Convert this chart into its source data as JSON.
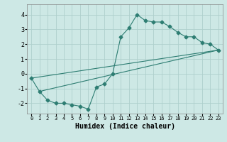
{
  "title": "",
  "xlabel": "Humidex (Indice chaleur)",
  "ylabel": "",
  "background_color": "#cde8e5",
  "grid_color": "#aed0cc",
  "line_color": "#2d7d72",
  "x_data": [
    0,
    1,
    2,
    3,
    4,
    5,
    6,
    7,
    8,
    9,
    10,
    11,
    12,
    13,
    14,
    15,
    16,
    17,
    18,
    19,
    20,
    21,
    22,
    23
  ],
  "y_data": [
    -0.3,
    -1.2,
    -1.8,
    -2.0,
    -2.0,
    -2.1,
    -2.2,
    -2.4,
    -0.9,
    -0.7,
    0.0,
    2.5,
    3.1,
    4.0,
    3.6,
    3.5,
    3.5,
    3.2,
    2.8,
    2.5,
    2.5,
    2.1,
    2.0,
    1.6
  ],
  "line1_x": [
    0,
    23
  ],
  "line1_y": [
    -0.3,
    1.6
  ],
  "line2_x": [
    1,
    23
  ],
  "line2_y": [
    -1.2,
    1.6
  ],
  "xlim": [
    -0.5,
    23.5
  ],
  "ylim": [
    -2.7,
    4.7
  ],
  "xticks": [
    0,
    1,
    2,
    3,
    4,
    5,
    6,
    7,
    8,
    9,
    10,
    11,
    12,
    13,
    14,
    15,
    16,
    17,
    18,
    19,
    20,
    21,
    22,
    23
  ],
  "yticks": [
    -2,
    -1,
    0,
    1,
    2,
    3,
    4
  ],
  "fontsize_xlabel": 7,
  "marker_size": 2.5
}
